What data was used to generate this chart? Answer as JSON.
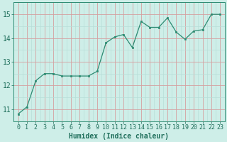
{
  "x": [
    0,
    1,
    2,
    3,
    4,
    5,
    6,
    7,
    8,
    9,
    10,
    11,
    12,
    13,
    14,
    15,
    16,
    17,
    18,
    19,
    20,
    21,
    22,
    23
  ],
  "y": [
    10.8,
    11.1,
    12.2,
    12.5,
    12.5,
    12.4,
    12.4,
    12.4,
    12.4,
    12.6,
    13.8,
    14.05,
    14.15,
    13.6,
    14.7,
    14.45,
    14.45,
    14.85,
    14.25,
    13.95,
    14.3,
    14.35,
    15.0,
    15.0
  ],
  "xlabel": "Humidex (Indice chaleur)",
  "ylim": [
    10.5,
    15.3
  ],
  "xlim": [
    -0.5,
    23.5
  ],
  "yticks": [
    11,
    12,
    13,
    14,
    15
  ],
  "xticks": [
    0,
    1,
    2,
    3,
    4,
    5,
    6,
    7,
    8,
    9,
    10,
    11,
    12,
    13,
    14,
    15,
    16,
    17,
    18,
    19,
    20,
    21,
    22,
    23
  ],
  "line_color": "#2d8b72",
  "marker_color": "#2d8b72",
  "bg_color": "#ceeee8",
  "grid_major_color": "#d4a0a0",
  "grid_minor_color": "#b8ddd8",
  "axes_edge_color": "#2d8b72",
  "tick_label_color": "#1e6e5a",
  "xlabel_color": "#1e6e5a",
  "xlabel_fontsize": 7,
  "tick_fontsize": 6,
  "ytick_fontsize": 7
}
